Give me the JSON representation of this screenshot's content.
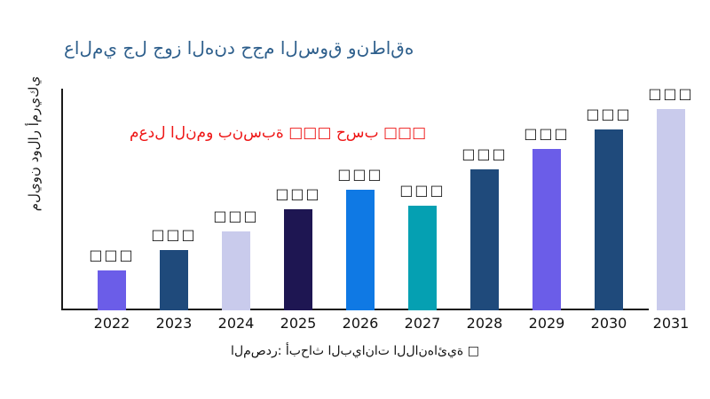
{
  "title": {
    "text": "عالمي جل جوز الهند حجم السوق ونطاقه",
    "color": "#2e5f8c"
  },
  "annotation": {
    "text": "معدل النمو بنسبة □□□ حسب □□□",
    "color": "#ee1515"
  },
  "y_axis_label": "مليون دولار أمريكي",
  "source_caption": "المصدر: أبحاث البيانات اللانهائية □",
  "axis_color": "#1a1a1a",
  "chart_data": {
    "type": "bar",
    "title": "عالمي جل جوز الهند حجم السوق ونطاقه",
    "xlabel": "",
    "ylabel": "مليون دولار أمريكي",
    "categories": [
      "2022",
      "2023",
      "2024",
      "2025",
      "2026",
      "2027",
      "2028",
      "2029",
      "2030",
      "2031"
    ],
    "values": [
      20,
      30,
      39,
      50,
      60,
      52,
      70,
      80,
      90,
      100
    ],
    "values_note": "relative heights, max = 100; numeric data labels are rendered in the image as missing-glyph boxes",
    "bar_labels": [
      "□□□",
      "□□□",
      "□□□",
      "□□□",
      "□□□",
      "□□□",
      "□□□",
      "□□□",
      "□□□",
      "□□□"
    ],
    "bar_colors": [
      "#6b5de8",
      "#1f4a7b",
      "#c9cbec",
      "#1e1652",
      "#0f79e4",
      "#05a0b2",
      "#1f4a7b",
      "#6b5de8",
      "#1f4a7b",
      "#c9cbec"
    ],
    "ylim": [
      0,
      110
    ],
    "grid": false,
    "legend": false
  }
}
